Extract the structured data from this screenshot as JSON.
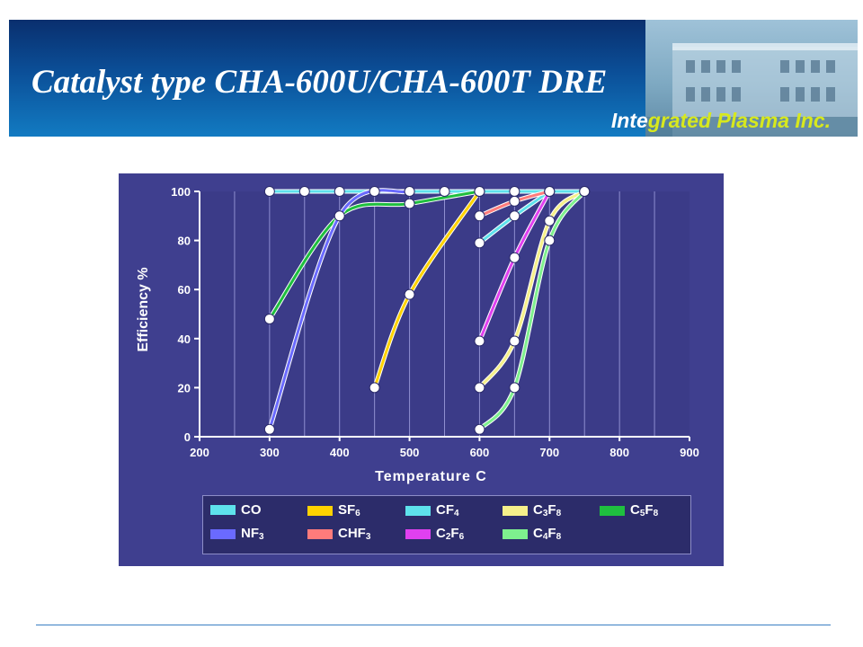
{
  "slide": {
    "title": "Catalyst type CHA-600U/CHA-600T  DRE",
    "company_part1": "Inte",
    "company_part2": "grated Plasma Inc."
  },
  "colors": {
    "banner": "#0b4f98",
    "panel": "#3f3f8f",
    "accent": "#d7e81e"
  },
  "chart_data": {
    "type": "line",
    "xlabel": "Temperature C",
    "ylabel": "Efficiency %",
    "xlim": [
      200,
      900
    ],
    "ylim": [
      0,
      100
    ],
    "xticks": [
      200,
      300,
      400,
      500,
      600,
      700,
      800,
      900
    ],
    "yticks": [
      0,
      20,
      40,
      60,
      80,
      100
    ],
    "grid": "vertical",
    "legend_position": "bottom",
    "series": [
      {
        "name": "CO",
        "label": "CO",
        "sub": "",
        "label2": "",
        "sub2": "",
        "color": "#5ee2ec",
        "points": [
          [
            300,
            100
          ],
          [
            350,
            100
          ],
          [
            400,
            100
          ],
          [
            450,
            100
          ],
          [
            500,
            100
          ],
          [
            550,
            100
          ],
          [
            600,
            100
          ],
          [
            650,
            100
          ],
          [
            700,
            100
          ],
          [
            750,
            100
          ]
        ]
      },
      {
        "name": "SF6",
        "label": "SF",
        "sub": "6",
        "label2": "",
        "sub2": "",
        "color": "#ffd200",
        "points": [
          [
            450,
            20
          ],
          [
            500,
            58
          ],
          [
            600,
            100
          ]
        ]
      },
      {
        "name": "CF4",
        "label": "CF",
        "sub": "4",
        "label2": "",
        "sub2": "",
        "color": "#5ee2ec",
        "points": [
          [
            600,
            79
          ],
          [
            650,
            90
          ],
          [
            700,
            100
          ]
        ]
      },
      {
        "name": "C3F8",
        "label": "C",
        "sub": "3",
        "label2": "F",
        "sub2": "8",
        "color": "#f6f08a",
        "points": [
          [
            600,
            20
          ],
          [
            650,
            39
          ],
          [
            700,
            88
          ],
          [
            750,
            100
          ]
        ]
      },
      {
        "name": "C5F8",
        "label": "C",
        "sub": "5",
        "label2": "F",
        "sub2": "8",
        "color": "#1fbf3f",
        "points": [
          [
            300,
            48
          ],
          [
            400,
            90
          ],
          [
            500,
            95
          ],
          [
            600,
            100
          ]
        ]
      },
      {
        "name": "NF3",
        "label": "NF",
        "sub": "3",
        "label2": "",
        "sub2": "",
        "color": "#6a6aff",
        "points": [
          [
            300,
            3
          ],
          [
            400,
            90
          ],
          [
            500,
            100
          ]
        ]
      },
      {
        "name": "CHF3",
        "label": "CHF",
        "sub": "3",
        "label2": "",
        "sub2": "",
        "color": "#ff7b7b",
        "points": [
          [
            600,
            90
          ],
          [
            650,
            96
          ],
          [
            700,
            100
          ]
        ]
      },
      {
        "name": "C2F6",
        "label": "C",
        "sub": "2",
        "label2": "F",
        "sub2": "6",
        "color": "#e040f0",
        "points": [
          [
            600,
            39
          ],
          [
            650,
            73
          ],
          [
            700,
            100
          ]
        ]
      },
      {
        "name": "C4F8",
        "label": "C",
        "sub": "4",
        "label2": "F",
        "sub2": "8",
        "color": "#7ef08e",
        "points": [
          [
            600,
            3
          ],
          [
            650,
            20
          ],
          [
            700,
            80
          ],
          [
            750,
            100
          ]
        ]
      }
    ]
  }
}
